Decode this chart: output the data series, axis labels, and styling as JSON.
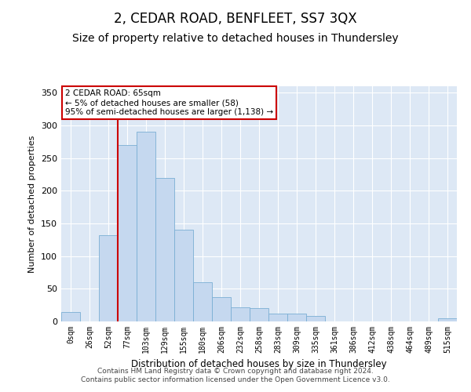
{
  "title": "2, CEDAR ROAD, BENFLEET, SS7 3QX",
  "subtitle": "Size of property relative to detached houses in Thundersley",
  "xlabel": "Distribution of detached houses by size in Thundersley",
  "ylabel": "Number of detached properties",
  "categories": [
    "0sqm",
    "26sqm",
    "52sqm",
    "77sqm",
    "103sqm",
    "129sqm",
    "155sqm",
    "180sqm",
    "206sqm",
    "232sqm",
    "258sqm",
    "283sqm",
    "309sqm",
    "335sqm",
    "361sqm",
    "386sqm",
    "412sqm",
    "438sqm",
    "464sqm",
    "489sqm",
    "515sqm"
  ],
  "bar_values": [
    15,
    0,
    132,
    270,
    290,
    220,
    140,
    60,
    37,
    22,
    20,
    12,
    12,
    8,
    0,
    0,
    0,
    0,
    0,
    0,
    5
  ],
  "bar_color": "#c5d8ef",
  "bar_edgecolor": "#7aaed4",
  "vline_color": "#cc0000",
  "vline_x_index": 2.48,
  "annotation_text": "2 CEDAR ROAD: 65sqm\n← 5% of detached houses are smaller (58)\n95% of semi-detached houses are larger (1,138) →",
  "annotation_box_color": "white",
  "annotation_box_edgecolor": "#cc0000",
  "ylim": [
    0,
    360
  ],
  "yticks": [
    0,
    50,
    100,
    150,
    200,
    250,
    300,
    350
  ],
  "background_color": "#dde8f5",
  "footer1": "Contains HM Land Registry data © Crown copyright and database right 2024.",
  "footer2": "Contains public sector information licensed under the Open Government Licence v3.0.",
  "title_fontsize": 12,
  "subtitle_fontsize": 10,
  "footer_fontsize": 6.5
}
